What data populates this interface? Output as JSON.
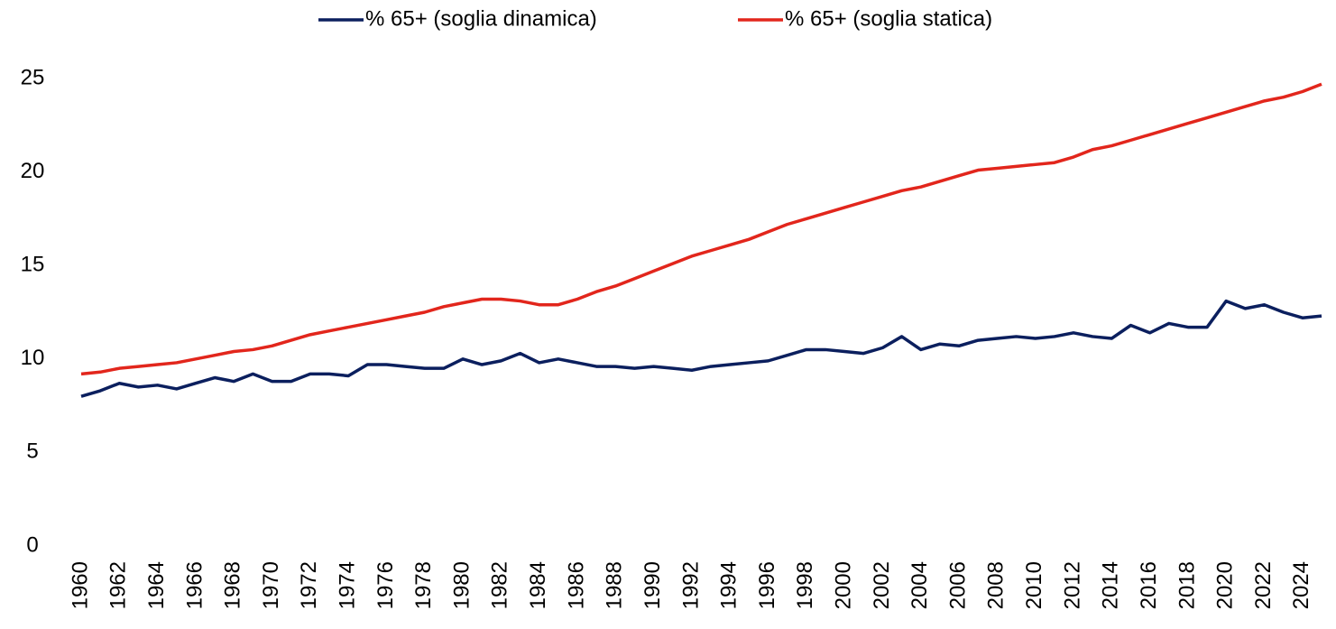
{
  "chart_data": {
    "type": "line",
    "x": [
      1960,
      1961,
      1962,
      1963,
      1964,
      1965,
      1966,
      1967,
      1968,
      1969,
      1970,
      1971,
      1972,
      1973,
      1974,
      1975,
      1976,
      1977,
      1978,
      1979,
      1980,
      1981,
      1982,
      1983,
      1984,
      1985,
      1986,
      1987,
      1988,
      1989,
      1990,
      1991,
      1992,
      1993,
      1994,
      1995,
      1996,
      1997,
      1998,
      1999,
      2000,
      2001,
      2002,
      2003,
      2004,
      2005,
      2006,
      2007,
      2008,
      2009,
      2010,
      2011,
      2012,
      2013,
      2014,
      2015,
      2016,
      2017,
      2018,
      2019,
      2020,
      2021,
      2022,
      2023,
      2024,
      2025
    ],
    "xlim": [
      1960,
      2025
    ],
    "xticks": [
      1960,
      1962,
      1964,
      1966,
      1968,
      1970,
      1972,
      1974,
      1976,
      1978,
      1980,
      1982,
      1984,
      1986,
      1988,
      1990,
      1992,
      1994,
      1996,
      1998,
      2000,
      2002,
      2004,
      2006,
      2008,
      2010,
      2012,
      2014,
      2016,
      2018,
      2020,
      2022,
      2024
    ],
    "ylim": [
      0,
      25
    ],
    "yticks": [
      0,
      5,
      10,
      15,
      20,
      25
    ],
    "grid": false,
    "legend": "top",
    "series": [
      {
        "name": "% 65+ (soglia dinamica)",
        "color": "#0b1f5e",
        "values": [
          8.0,
          8.3,
          8.7,
          8.5,
          8.6,
          8.4,
          8.7,
          9.0,
          8.8,
          9.2,
          8.8,
          8.8,
          9.2,
          9.2,
          9.1,
          9.7,
          9.7,
          9.6,
          9.5,
          9.5,
          10.0,
          9.7,
          9.9,
          10.3,
          9.8,
          10.0,
          9.8,
          9.6,
          9.6,
          9.5,
          9.6,
          9.5,
          9.4,
          9.6,
          9.7,
          9.8,
          9.9,
          10.2,
          10.5,
          10.5,
          10.4,
          10.3,
          10.6,
          11.2,
          10.5,
          10.8,
          10.7,
          11.0,
          11.1,
          11.2,
          11.1,
          11.2,
          11.4,
          11.2,
          11.1,
          11.8,
          11.4,
          11.9,
          11.7,
          11.7,
          13.1,
          12.7,
          12.9,
          12.5,
          12.2,
          12.3
        ]
      },
      {
        "name": "% 65+ (soglia statica)",
        "color": "#e2261c",
        "values": [
          9.2,
          9.3,
          9.5,
          9.6,
          9.7,
          9.8,
          10.0,
          10.2,
          10.4,
          10.5,
          10.7,
          11.0,
          11.3,
          11.5,
          11.7,
          11.9,
          12.1,
          12.3,
          12.5,
          12.8,
          13.0,
          13.2,
          13.2,
          13.1,
          12.9,
          12.9,
          13.2,
          13.6,
          13.9,
          14.3,
          14.7,
          15.1,
          15.5,
          15.8,
          16.1,
          16.4,
          16.8,
          17.2,
          17.5,
          17.8,
          18.1,
          18.4,
          18.7,
          19.0,
          19.2,
          19.5,
          19.8,
          20.1,
          20.2,
          20.3,
          20.4,
          20.5,
          20.8,
          21.2,
          21.4,
          21.7,
          22.0,
          22.3,
          22.6,
          22.9,
          23.2,
          23.5,
          23.8,
          24.0,
          24.3,
          24.7
        ]
      }
    ]
  }
}
